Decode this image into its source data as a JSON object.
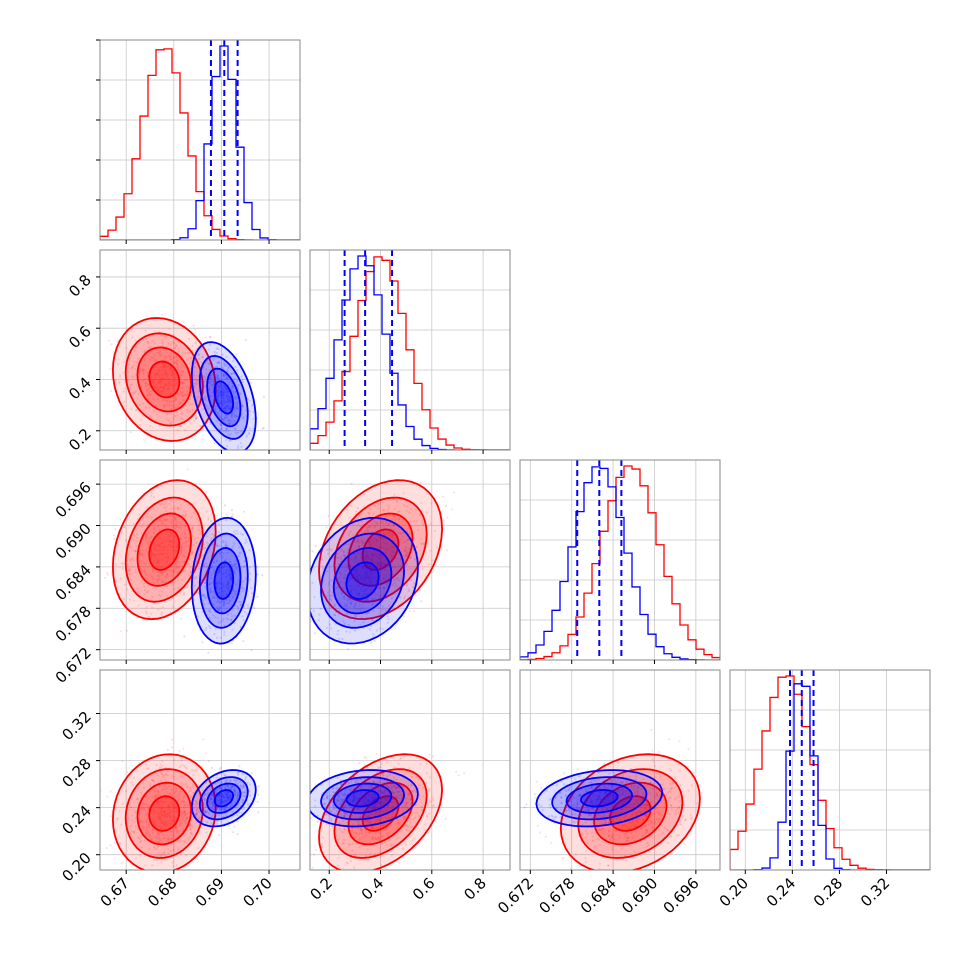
{
  "colors": {
    "model_a": "#ff0000",
    "model_b": "#0000ff"
  },
  "chart_data": {
    "type": "corner",
    "grid": true,
    "params": [
      {
        "ticks": [
          "0.67",
          "0.68",
          "0.69",
          "0.70"
        ],
        "tick_values": [
          0.67,
          0.68,
          0.69,
          0.7
        ],
        "range": [
          0.6645,
          0.7065
        ]
      },
      {
        "ticks": [
          "0.2",
          "0.4",
          "0.6",
          "0.8"
        ],
        "tick_values": [
          0.2,
          0.4,
          0.6,
          0.8
        ],
        "range": [
          0.125,
          0.905
        ]
      },
      {
        "ticks": [
          "0.672",
          "0.678",
          "0.684",
          "0.690",
          "0.696"
        ],
        "tick_values": [
          0.672,
          0.678,
          0.684,
          0.69,
          0.696
        ],
        "range": [
          0.6705,
          0.6995
        ]
      },
      {
        "ticks": [
          "0.20",
          "0.24",
          "0.28",
          "0.32"
        ],
        "tick_values": [
          0.2,
          0.24,
          0.28,
          0.32
        ],
        "range": [
          0.187,
          0.357
        ]
      }
    ],
    "series": [
      {
        "color": "red",
        "mean": [
          0.678,
          0.4,
          0.6865,
          0.235
        ],
        "sd": [
          0.0045,
          0.1,
          0.0042,
          0.021
        ],
        "corr": {
          "0-1": -0.15,
          "0-2": 0.25,
          "0-3": 0.1,
          "1-2": 0.3,
          "1-3": 0.4,
          "2-3": 0.25
        }
      },
      {
        "color": "blue",
        "mean": [
          0.6905,
          0.33,
          0.682,
          0.248
        ],
        "sd": [
          0.0028,
          0.09,
          0.0038,
          0.01
        ],
        "corr": {
          "0-1": -0.4,
          "0-2": 0.1,
          "0-3": 0.3,
          "1-2": 0.2,
          "1-3": 0.15,
          "2-3": 0.2
        }
      }
    ],
    "quantile_lines": [
      {
        "param": 0,
        "color": "blue",
        "values": [
          0.6878,
          0.6906,
          0.6934
        ]
      },
      {
        "param": 1,
        "color": "blue",
        "values": [
          0.26,
          0.34,
          0.445
        ]
      },
      {
        "param": 2,
        "color": "blue",
        "values": [
          0.6788,
          0.682,
          0.6852
        ]
      },
      {
        "param": 3,
        "color": "blue",
        "values": [
          0.238,
          0.248,
          0.258
        ]
      }
    ]
  }
}
